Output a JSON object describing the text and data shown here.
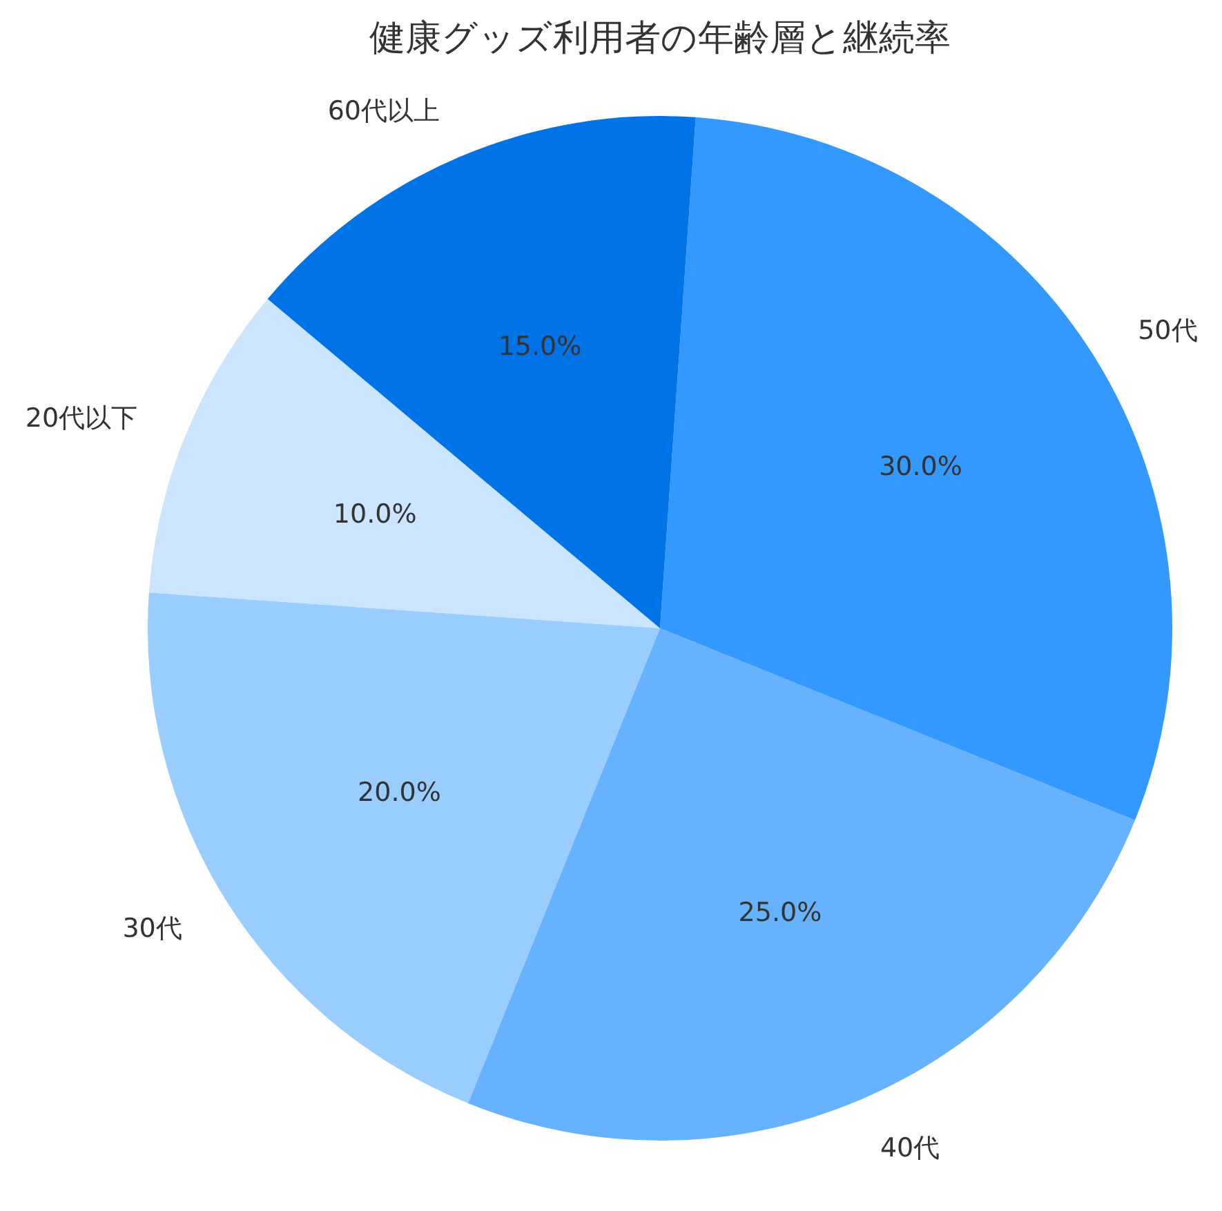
{
  "chart_data": {
    "type": "pie",
    "title": "健康グッズ利用者の年齢層と継続率",
    "categories": [
      "20代以下",
      "30代",
      "40代",
      "50代",
      "60代以上"
    ],
    "values": [
      10,
      20,
      25,
      30,
      15
    ],
    "value_labels": [
      "10.0%",
      "20.0%",
      "25.0%",
      "30.0%",
      "15.0%"
    ],
    "colors": [
      "#cce5ff",
      "#99ccff",
      "#66b2ff",
      "#3399ff",
      "#0073e6"
    ]
  }
}
